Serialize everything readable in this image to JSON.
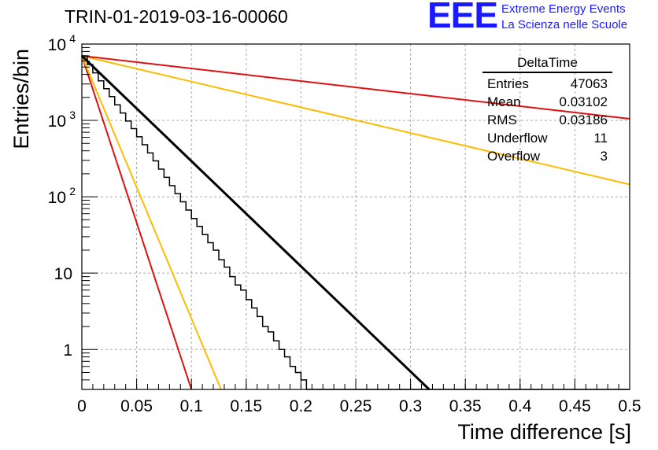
{
  "title": "TRIN-01-2019-03-16-00060",
  "logo": {
    "mark": "EEE",
    "line1": "Extreme Energy Events",
    "line2": "La Scienza nelle Scuole"
  },
  "stats_box": {
    "name": "DeltaTime",
    "entries": [
      {
        "label": "Entries",
        "value": "47063"
      },
      {
        "label": "Mean",
        "value": "0.03102"
      },
      {
        "label": "RMS",
        "value": "0.03186"
      },
      {
        "label": "Underflow",
        "value": "11"
      },
      {
        "label": "Overflow",
        "value": "3"
      }
    ]
  },
  "chart_data": {
    "type": "line",
    "xlabel": "Time difference [s]",
    "ylabel": "Entries/bin",
    "xlim": [
      0,
      0.5
    ],
    "ylim": [
      0.3,
      10000
    ],
    "y_scale": "log",
    "grid": true,
    "x_ticks": [
      "0",
      "0.05",
      "0.1",
      "0.15",
      "0.2",
      "0.25",
      "0.3",
      "0.35",
      "0.4",
      "0.45",
      "0.5"
    ],
    "y_ticks": [
      {
        "value": 1,
        "base": "1",
        "exp": ""
      },
      {
        "value": 10,
        "base": "10",
        "exp": ""
      },
      {
        "value": 100,
        "base": "10",
        "exp": "2"
      },
      {
        "value": 1000,
        "base": "10",
        "exp": "3"
      },
      {
        "value": 10000,
        "base": "10",
        "exp": "4"
      }
    ],
    "colors": {
      "histogram": "#000000",
      "fit": "#000000",
      "red": "#dd1111",
      "orange": "#ffbb00"
    },
    "histogram": {
      "bin_width": 0.005,
      "counts": [
        7000,
        5400,
        4200,
        3300,
        2600,
        2050,
        1600,
        1250,
        980,
        780,
        610,
        480,
        375,
        295,
        230,
        180,
        140,
        110,
        86,
        67,
        52,
        41,
        32,
        25,
        20,
        15,
        12,
        9,
        7,
        6,
        4.5,
        3.5,
        2.7,
        2,
        1.7,
        1.3,
        1,
        0.8,
        0.6,
        0.5,
        0.4,
        0.3,
        0.3,
        0.3,
        0.3,
        0.3,
        0.3,
        0.3,
        0.3,
        0.3,
        0.3,
        0.3,
        0.3,
        0.3,
        0.3,
        0.3,
        0.3,
        0.3,
        0.3,
        0.3,
        0.3,
        0.3,
        0.3,
        0.3,
        0.3,
        0.3,
        0.3,
        0.3,
        0.3,
        0.3,
        0.3,
        0.3,
        0.3,
        0.3,
        0.3,
        0.3,
        0.3,
        0.3,
        0.3,
        0.3,
        0.3,
        0.3,
        0.3,
        0.3,
        0.3,
        0.3,
        0.3,
        0.3,
        0.3,
        0.3,
        0.3,
        0.3,
        0.3,
        0.3,
        0.3,
        0.3,
        0.3,
        0.3,
        0.3,
        0.3
      ]
    },
    "fit": {
      "x": [
        0,
        0.317
      ],
      "y": [
        7000,
        0.3
      ]
    },
    "lines": [
      {
        "color": "red",
        "x": [
          0,
          0.1
        ],
        "y": [
          7000,
          0.3
        ]
      },
      {
        "color": "orange",
        "x": [
          0,
          0.127
        ],
        "y": [
          7000,
          0.3
        ]
      },
      {
        "color": "orange",
        "x": [
          0,
          0.5
        ],
        "y": [
          7000,
          145
        ]
      },
      {
        "color": "red",
        "x": [
          0,
          0.5
        ],
        "y": [
          7000,
          1050
        ]
      }
    ]
  }
}
